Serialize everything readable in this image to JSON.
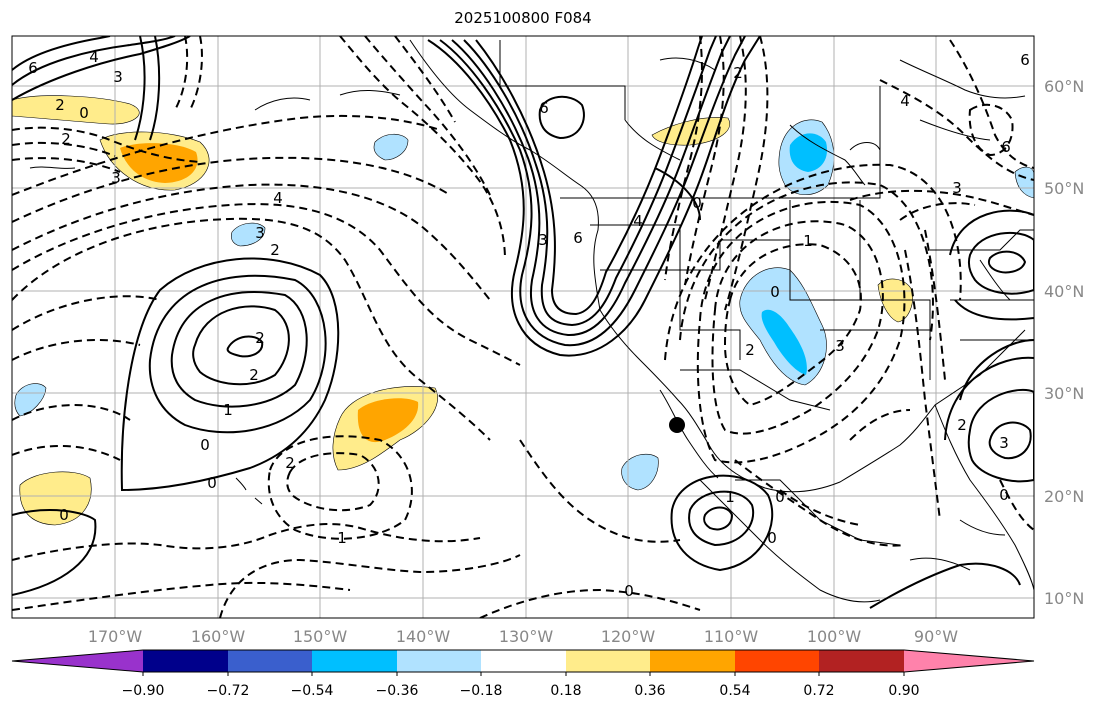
{
  "title": "2025100800 F084",
  "lat_labels": [
    "60°N",
    "50°N",
    "40°N",
    "30°N",
    "20°N",
    "10°N"
  ],
  "lon_labels": [
    "170°W",
    "160°W",
    "150°W",
    "140°W",
    "130°W",
    "120°W",
    "110°W",
    "100°W",
    "90°W"
  ],
  "colorbar": {
    "ticks": [
      "−0.90",
      "−0.72",
      "−0.54",
      "−0.36",
      "−0.18",
      "0.18",
      "0.36",
      "0.54",
      "0.72",
      "0.90"
    ],
    "colors": [
      "#9932cc",
      "#00008b",
      "#3a5fcd",
      "#00bfff",
      "#b0e2ff",
      "#ffffff",
      "#ffec8b",
      "#ffa500",
      "#ff4500",
      "#b22222",
      "#ff82ab"
    ]
  },
  "contour_labels": [
    {
      "text": "6"
    },
    {
      "text": "4"
    },
    {
      "text": "3"
    },
    {
      "text": "2"
    },
    {
      "text": "0"
    },
    {
      "text": "2"
    },
    {
      "text": "3"
    },
    {
      "text": "4"
    },
    {
      "text": "2"
    },
    {
      "text": "3"
    },
    {
      "text": "2"
    },
    {
      "text": "2"
    },
    {
      "text": "1"
    },
    {
      "text": "0"
    },
    {
      "text": "0"
    },
    {
      "text": "2"
    },
    {
      "text": "1"
    },
    {
      "text": "0"
    },
    {
      "text": "6"
    },
    {
      "text": "3"
    },
    {
      "text": "6"
    },
    {
      "text": "4"
    },
    {
      "text": "2"
    },
    {
      "text": "0"
    },
    {
      "text": "1"
    },
    {
      "text": "0"
    },
    {
      "text": "2"
    },
    {
      "text": "3"
    },
    {
      "text": "1"
    },
    {
      "text": "0"
    },
    {
      "text": "0"
    },
    {
      "text": "3"
    },
    {
      "text": "6"
    },
    {
      "text": "2"
    },
    {
      "text": "3"
    },
    {
      "text": "0"
    },
    {
      "text": "0"
    },
    {
      "text": "6"
    },
    {
      "text": "4"
    }
  ],
  "point_marker": {
    "label": "marker"
  }
}
